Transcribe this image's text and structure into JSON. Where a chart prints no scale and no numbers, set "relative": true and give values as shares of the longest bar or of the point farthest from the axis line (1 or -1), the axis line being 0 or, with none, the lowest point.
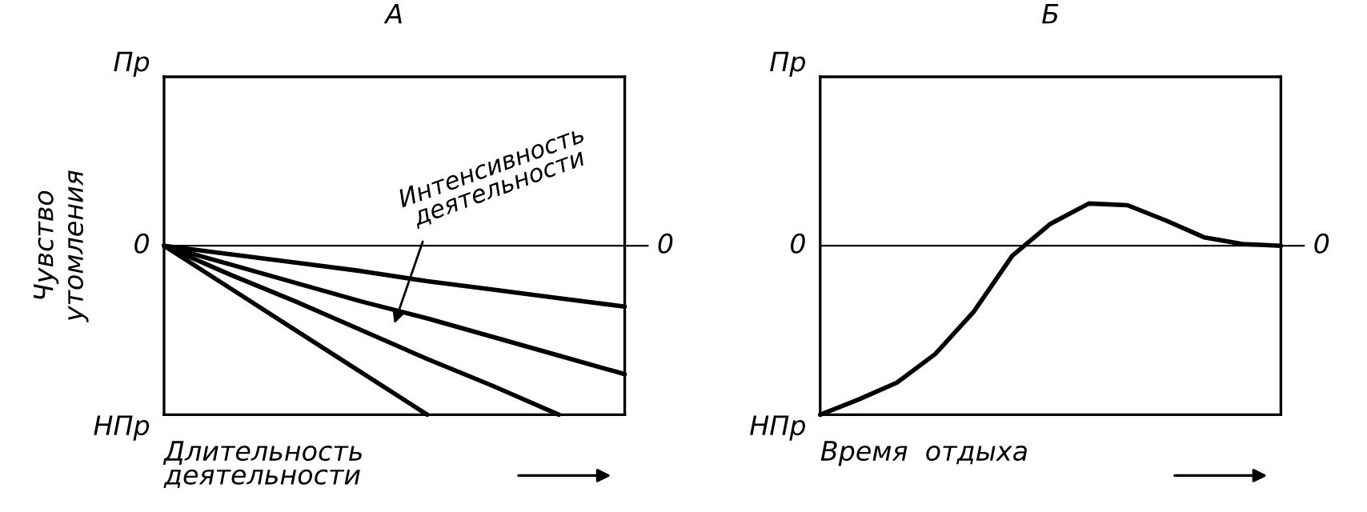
{
  "chart_data": [
    {
      "type": "line",
      "title": "А",
      "ylabel": "Чувство\nутомления",
      "xlabel": "Длительность\nдеятельности",
      "categories": [
        null,
        null,
        null,
        null,
        null,
        null,
        null,
        null
      ],
      "series": [
        {
          "color": "#000000",
          "values": [
            0,
            -0.05,
            -0.1,
            -0.15,
            -0.21,
            -0.26,
            -0.31,
            -0.36
          ]
        },
        {
          "color": "#000000",
          "values": [
            0,
            -0.11,
            -0.22,
            -0.33,
            -0.43,
            -0.54,
            -0.65,
            -0.76
          ]
        },
        {
          "color": "#000000",
          "values": [
            0,
            -0.17,
            -0.33,
            -0.5,
            -0.67,
            -0.83,
            -1.0,
            null
          ]
        },
        {
          "color": "#000000",
          "values": [
            0,
            -0.25,
            -0.5,
            -0.75,
            -1.0,
            null,
            null,
            null
          ]
        }
      ],
      "relative": true,
      "ref_lines": [
        {
          "axis": "y",
          "value": 0,
          "label": "0",
          "color": "#000000"
        }
      ],
      "annotations": [
        "Пр",
        "0",
        "НПр",
        "Интенсивность\nдеятельности"
      ],
      "grid": false,
      "legend": false,
      "marker": "none",
      "line_style": "solid"
    },
    {
      "type": "line",
      "title": "Б",
      "xlabel": "Время  отдыха",
      "categories": [
        null,
        null,
        null,
        null,
        null,
        null,
        null,
        null,
        null,
        null,
        null,
        null,
        null
      ],
      "series": [
        {
          "color": "#000000",
          "values": [
            -1,
            -0.91,
            -0.81,
            -0.64,
            -0.39,
            -0.06,
            0.13,
            0.25,
            0.24,
            0.15,
            0.05,
            0.01,
            0
          ]
        }
      ],
      "relative": true,
      "ref_lines": [
        {
          "axis": "y",
          "value": 0,
          "label": "0",
          "color": "#000000"
        }
      ],
      "annotations": [
        "Пр",
        "0",
        "НПр"
      ],
      "grid": false,
      "legend": false,
      "marker": "none",
      "line_style": "solid"
    }
  ]
}
